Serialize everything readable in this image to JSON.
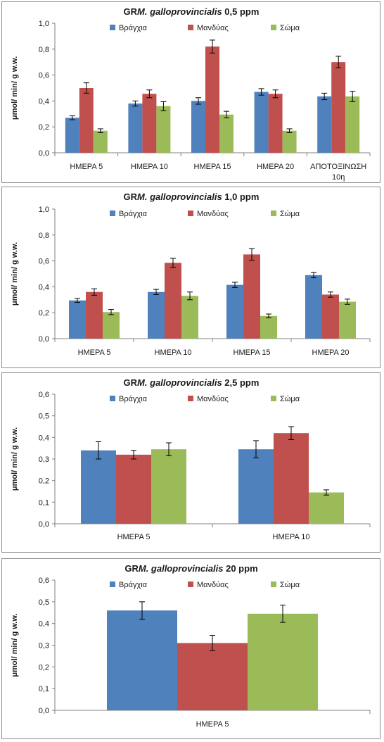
{
  "colors": {
    "gills": "#4f81bd",
    "mantle": "#c0504d",
    "body": "#9bbb59"
  },
  "chart_data": [
    {
      "type": "bar",
      "title": "GR M. galloprovincialis 0,5 ppm",
      "title_prefix": "GR",
      "title_species": "M. galloprovincialis",
      "title_suffix": "0,5 ppm",
      "ylabel": "μmol/ min/ g w.w.",
      "ylim": [
        0,
        1.0
      ],
      "yticks": [
        "0,0",
        "0,2",
        "0,4",
        "0,6",
        "0,8",
        "1,0"
      ],
      "legend_position": "top",
      "categories": [
        "ΗΜΕΡΑ 5",
        "ΗΜΕΡΑ 10",
        "ΗΜΕΡΑ 15",
        "ΗΜΕΡΑ 20",
        "ΑΠΟΤΟΞΙΝΩΣΗ 10η"
      ],
      "series": [
        {
          "name": "Βράγχια",
          "values": [
            0.27,
            0.38,
            0.4,
            0.47,
            0.435
          ],
          "errors": [
            0.015,
            0.02,
            0.025,
            0.025,
            0.025
          ]
        },
        {
          "name": "Μανδύας",
          "values": [
            0.5,
            0.455,
            0.82,
            0.455,
            0.7
          ],
          "errors": [
            0.04,
            0.03,
            0.05,
            0.03,
            0.045
          ]
        },
        {
          "name": "Σώμα",
          "values": [
            0.17,
            0.36,
            0.295,
            0.17,
            0.435
          ],
          "errors": [
            0.015,
            0.035,
            0.025,
            0.015,
            0.04
          ]
        }
      ]
    },
    {
      "type": "bar",
      "title": "GR M. galloprovincialis 1,0 ppm",
      "title_prefix": "GR",
      "title_species": "M. galloprovincialis",
      "title_suffix": "1,0 ppm",
      "ylabel": "μmol/ min/ g w.w.",
      "ylim": [
        0,
        1.0
      ],
      "yticks": [
        "0,0",
        "0,2",
        "0,4",
        "0,6",
        "0,8",
        "1,0"
      ],
      "legend_position": "top",
      "categories": [
        "ΗΜΕΡΑ 5",
        "ΗΜΕΡΑ 10",
        "ΗΜΕΡΑ 15",
        "ΗΜΕΡΑ 20"
      ],
      "series": [
        {
          "name": "Βράγχια",
          "values": [
            0.295,
            0.36,
            0.415,
            0.49
          ],
          "errors": [
            0.015,
            0.02,
            0.02,
            0.02
          ]
        },
        {
          "name": "Μανδύας",
          "values": [
            0.36,
            0.585,
            0.65,
            0.34
          ],
          "errors": [
            0.025,
            0.035,
            0.045,
            0.02
          ]
        },
        {
          "name": "Σώμα",
          "values": [
            0.205,
            0.33,
            0.175,
            0.285
          ],
          "errors": [
            0.02,
            0.03,
            0.015,
            0.02
          ]
        }
      ]
    },
    {
      "type": "bar",
      "title": "GR M. galloprovincialis 2,5 ppm",
      "title_prefix": "GR",
      "title_species": "M. galloprovincialis",
      "title_suffix": "2,5 ppm",
      "ylabel": "μmol/ min/ g w.w.",
      "ylim": [
        0,
        0.6
      ],
      "yticks": [
        "0,0",
        "0,1",
        "0,2",
        "0,3",
        "0,4",
        "0,5",
        "0,6"
      ],
      "legend_position": "top",
      "categories": [
        "ΗΜΕΡΑ 5",
        "ΗΜΕΡΑ 10"
      ],
      "series": [
        {
          "name": "Βράγχια",
          "values": [
            0.34,
            0.345
          ],
          "errors": [
            0.04,
            0.04
          ]
        },
        {
          "name": "Μανδύας",
          "values": [
            0.32,
            0.42
          ],
          "errors": [
            0.02,
            0.03
          ]
        },
        {
          "name": "Σώμα",
          "values": [
            0.345,
            0.145
          ],
          "errors": [
            0.03,
            0.012
          ]
        }
      ]
    },
    {
      "type": "bar",
      "title": "GR M. galloprovincialis 20 ppm",
      "title_prefix": "GR",
      "title_species": "M. galloprovincialis",
      "title_suffix": "20 ppm",
      "ylabel": "μmol/ min/ g w.w.",
      "ylim": [
        0,
        0.6
      ],
      "yticks": [
        "0,0",
        "0,1",
        "0,2",
        "0,3",
        "0,4",
        "0,5",
        "0,6"
      ],
      "legend_position": "top",
      "categories": [
        "ΗΜΕΡΑ 5"
      ],
      "series": [
        {
          "name": "Βράγχια",
          "values": [
            0.46
          ],
          "errors": [
            0.04
          ]
        },
        {
          "name": "Μανδύας",
          "values": [
            0.31
          ],
          "errors": [
            0.035
          ]
        },
        {
          "name": "Σώμα",
          "values": [
            0.445
          ],
          "errors": [
            0.04
          ]
        }
      ]
    }
  ]
}
